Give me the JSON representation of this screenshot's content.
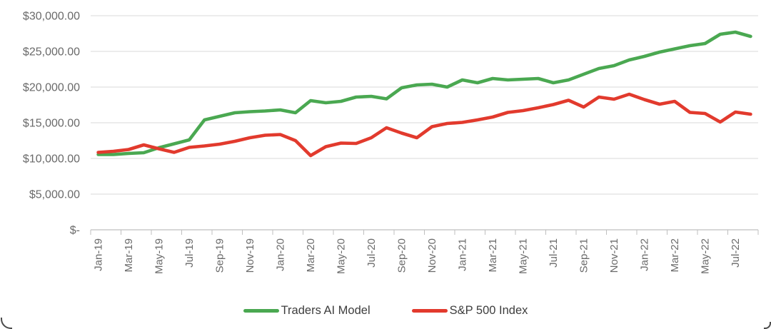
{
  "chart_data": {
    "type": "line",
    "title": "",
    "ylim": [
      0,
      30000
    ],
    "y_gridline_step": 5000,
    "grid": "horizontal",
    "legend_position": "bottom",
    "y_tick_labels": [
      "$30,000.00",
      "$25,000.00",
      "$20,000.00",
      "$15,000.00",
      "$10,000.00",
      "$5,000.00",
      "$-"
    ],
    "x_axis_tick_labels": [
      "Jan-19",
      "Mar-19",
      "May-19",
      "Jul-19",
      "Sep-19",
      "Nov-19",
      "Jan-20",
      "Mar-20",
      "May-20",
      "Jul-20",
      "Sep-20",
      "Nov-20",
      "Jan-21",
      "Mar-21",
      "May-21",
      "Jul-21",
      "Sep-21",
      "Nov-21",
      "Jan-22",
      "Mar-22",
      "May-22",
      "Jul-22"
    ],
    "categories": [
      "Jan-19",
      "Feb-19",
      "Mar-19",
      "Apr-19",
      "May-19",
      "Jun-19",
      "Jul-19",
      "Aug-19",
      "Sep-19",
      "Oct-19",
      "Nov-19",
      "Dec-19",
      "Jan-20",
      "Feb-20",
      "Mar-20",
      "Apr-20",
      "May-20",
      "Jun-20",
      "Jul-20",
      "Aug-20",
      "Sep-20",
      "Oct-20",
      "Nov-20",
      "Dec-20",
      "Jan-21",
      "Feb-21",
      "Mar-21",
      "Apr-21",
      "May-21",
      "Jun-21",
      "Jul-21",
      "Aug-21",
      "Sep-21",
      "Oct-21",
      "Nov-21",
      "Dec-21",
      "Jan-22",
      "Feb-22",
      "Mar-22",
      "Apr-22",
      "May-22",
      "Jun-22",
      "Jul-22",
      "Aug-22"
    ],
    "series": [
      {
        "name": "Traders AI Model",
        "color": "#4aa851",
        "values": [
          10550,
          10550,
          10700,
          10800,
          11500,
          12050,
          12600,
          15400,
          15900,
          16400,
          16550,
          16650,
          16800,
          16400,
          18100,
          17800,
          18000,
          18600,
          18700,
          18350,
          19900,
          20300,
          20400,
          20000,
          21000,
          20600,
          21200,
          21000,
          21100,
          21200,
          20600,
          21000,
          21800,
          22600,
          23000,
          23800,
          24300,
          24900,
          25350,
          25800,
          26100,
          27400,
          27700,
          27100
        ]
      },
      {
        "name": "S&P 500 Index",
        "color": "#e23a2d",
        "values": [
          10850,
          11000,
          11250,
          11900,
          11350,
          10850,
          11550,
          11750,
          12000,
          12400,
          12900,
          13250,
          13350,
          12500,
          10400,
          11650,
          12150,
          12100,
          12900,
          14300,
          13550,
          12900,
          14450,
          14900,
          15050,
          15400,
          15800,
          16450,
          16700,
          17100,
          17550,
          18150,
          17200,
          18600,
          18300,
          19000,
          18250,
          17600,
          18000,
          16450,
          16300,
          15100,
          16500,
          16200
        ]
      }
    ]
  }
}
